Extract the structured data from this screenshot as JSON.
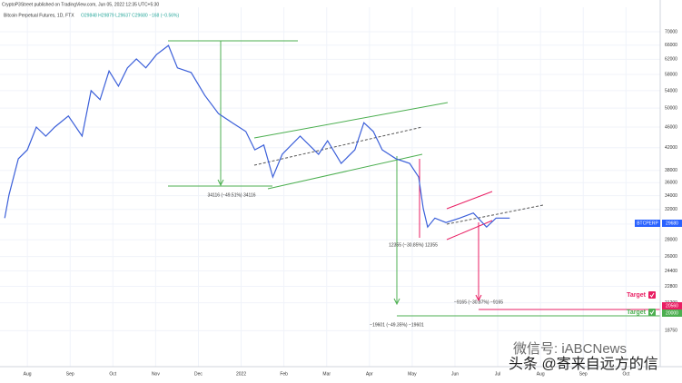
{
  "chart_data": {
    "type": "line",
    "title": "Bitcoin Perpetual Futures, 1D, FTX",
    "subtitle": "O29848 H29879 L29637 C29680 −168 (−0.56%)",
    "attribution": "CryptoP3Street published on TradingView.com, Jun 05, 2022 12:35 UTC+5:30",
    "log_scale": true,
    "grid": true,
    "xlim": [
      -0.64,
      14.8
    ],
    "xticks": [
      {
        "value": 0,
        "label": "Aug"
      },
      {
        "value": 1,
        "label": "Sep"
      },
      {
        "value": 2,
        "label": "Oct"
      },
      {
        "value": 3,
        "label": "Nov"
      },
      {
        "value": 4,
        "label": "Dec"
      },
      {
        "value": 5,
        "label": "2022"
      },
      {
        "value": 6,
        "label": "Feb"
      },
      {
        "value": 7,
        "label": "Mar"
      },
      {
        "value": 8,
        "label": "Apr"
      },
      {
        "value": 9,
        "label": "May"
      },
      {
        "value": 10,
        "label": "Jun"
      },
      {
        "value": 11,
        "label": "Jul"
      },
      {
        "value": 12,
        "label": "Aug"
      },
      {
        "value": 13,
        "label": "Sep"
      },
      {
        "value": 14,
        "label": "Oct"
      }
    ],
    "ylim": [
      16000,
      78000
    ],
    "yticks": [
      70000,
      66000,
      62000,
      58000,
      54000,
      50000,
      46000,
      42000,
      38000,
      36000,
      34000,
      32000,
      30000,
      28000,
      26000,
      24400,
      22800,
      21200,
      18750
    ],
    "series": [
      {
        "name": "BTCPERP",
        "color": "#3b5fd9",
        "x": [
          -0.53,
          -0.43,
          -0.21,
          0,
          0.21,
          0.43,
          0.64,
          0.96,
          1.28,
          1.49,
          1.7,
          1.91,
          2.13,
          2.34,
          2.55,
          2.77,
          3.02,
          3.3,
          3.51,
          3.83,
          4.15,
          4.47,
          4.79,
          5.11,
          5.32,
          5.53,
          5.74,
          5.96,
          6.38,
          6.81,
          7.02,
          7.34,
          7.66,
          7.87,
          8.09,
          8.3,
          8.62,
          8.94,
          9.15,
          9.26,
          9.36,
          9.53,
          9.79,
          10.11,
          10.43,
          10.74,
          10.96,
          11.28
        ],
        "values": [
          30800,
          34100,
          40000,
          41600,
          46000,
          44200,
          46000,
          48300,
          44200,
          54000,
          51900,
          58900,
          55100,
          59700,
          62100,
          59700,
          63300,
          65900,
          59700,
          58500,
          52900,
          48800,
          46900,
          45100,
          41600,
          42500,
          36900,
          40800,
          44200,
          40800,
          43300,
          39200,
          41600,
          46900,
          45100,
          41600,
          40000,
          39200,
          36900,
          32100,
          29600,
          30800,
          30200,
          30800,
          31500,
          29600,
          30800,
          30800
        ]
      }
    ],
    "annotations": [
      "34116 (−49.51%) 34116",
      "12355 (−30.85%) 12355",
      "−19601 (−49.35%) −19601",
      "−9165 (−30.87%) −9165",
      "Target",
      "Target"
    ],
    "price_labels": [
      "29680",
      "BTCPERP",
      "20560",
      "20000"
    ],
    "watermark": [
      "微信号: iABCNews",
      "头条 @寄来自远方的信"
    ]
  }
}
